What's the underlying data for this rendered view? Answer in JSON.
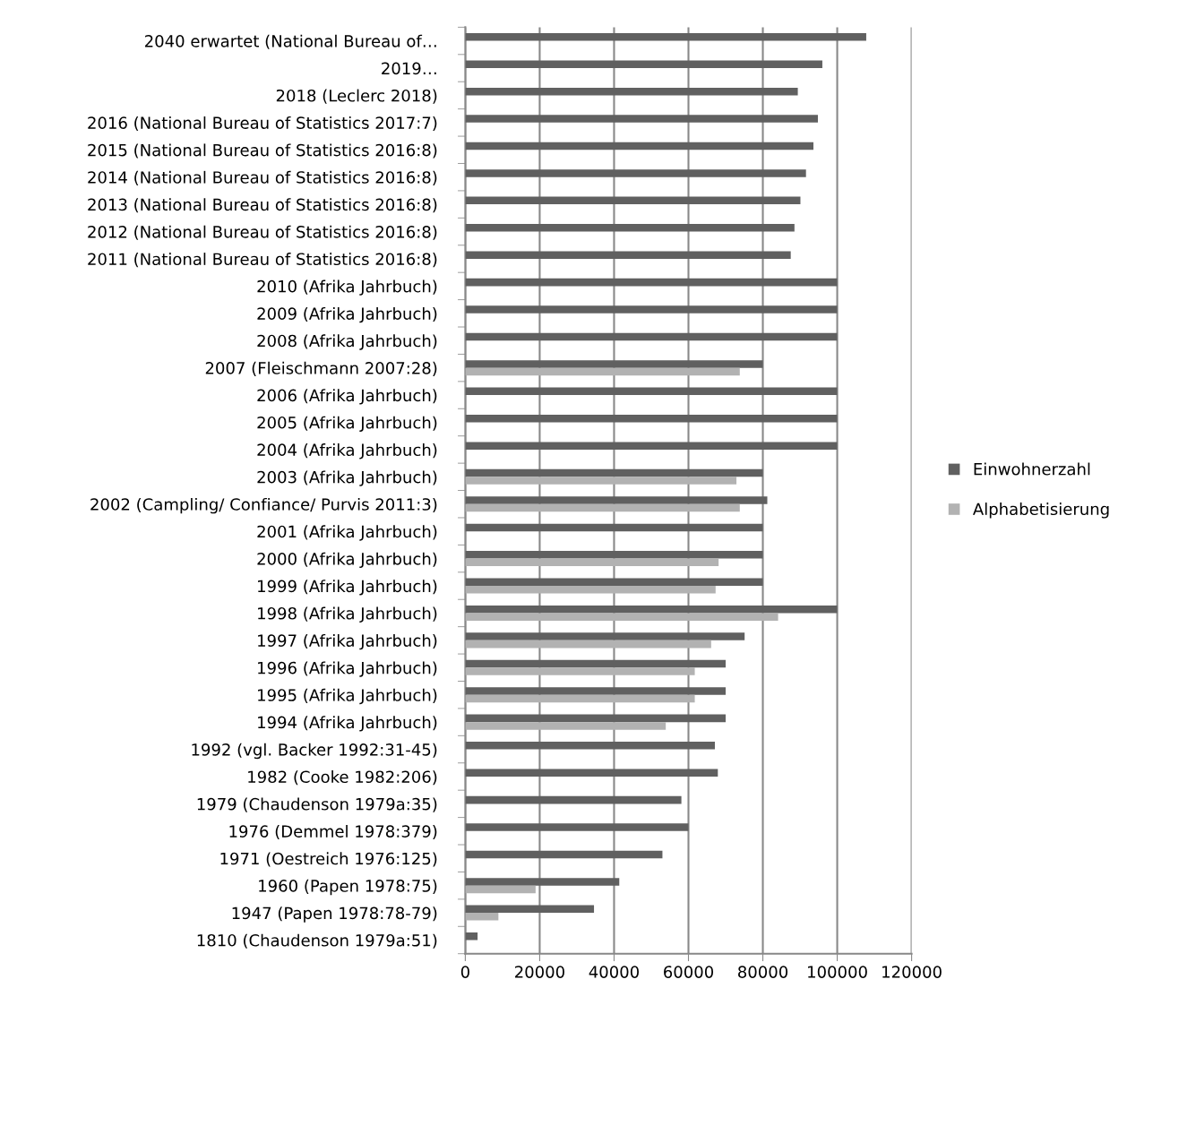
{
  "chart_data": {
    "type": "bar",
    "orientation": "horizontal",
    "categories": [
      "2040 erwartet (National Bureau of…",
      "2019…",
      "2018 (Leclerc 2018)",
      "2016 (National Bureau of Statistics 2017:7)",
      "2015 (National Bureau of Statistics 2016:8)",
      "2014 (National Bureau of Statistics 2016:8)",
      "2013 (National Bureau of Statistics 2016:8)",
      "2012 (National Bureau of Statistics 2016:8)",
      "2011 (National Bureau of Statistics 2016:8)",
      "2010 (Afrika Jahrbuch)",
      "2009 (Afrika Jahrbuch)",
      "2008 (Afrika Jahrbuch)",
      "2007 (Fleischmann 2007:28)",
      "2006 (Afrika Jahrbuch)",
      "2005 (Afrika Jahrbuch)",
      "2004 (Afrika Jahrbuch)",
      "2003 (Afrika Jahrbuch)",
      "2002 (Campling/ Confiance/ Purvis 2011:3)",
      "2001 (Afrika Jahrbuch)",
      "2000 (Afrika Jahrbuch)",
      "1999 (Afrika Jahrbuch)",
      "1998 (Afrika Jahrbuch)",
      "1997 (Afrika Jahrbuch)",
      "1996 (Afrika Jahrbuch)",
      "1995 (Afrika Jahrbuch)",
      "1994 (Afrika Jahrbuch)",
      "1992 (vgl. Backer 1992:31-45)",
      "1982 (Cooke 1982:206)",
      "1979 (Chaudenson 1979a:35)",
      "1976 (Demmel 1978:379)",
      "1971 (Oestreich 1976:125)",
      "1960 (Papen 1978:75)",
      "1947 (Papen 1978:78-79)",
      "1810 (Chaudenson 1979a:51)"
    ],
    "series": [
      {
        "name": "Einwohnerzahl",
        "color": "#606060",
        "values": [
          107800,
          96000,
          89400,
          94800,
          93600,
          91600,
          90100,
          88500,
          87500,
          100000,
          100000,
          100000,
          80000,
          100000,
          100000,
          100000,
          80000,
          81200,
          80000,
          80000,
          80000,
          100000,
          75100,
          70000,
          70000,
          70000,
          67100,
          67900,
          58100,
          60000,
          53000,
          41400,
          34600,
          3300
        ]
      },
      {
        "name": "Alphabetisierung",
        "color": "#b2b2b2",
        "values": [
          null,
          null,
          null,
          null,
          null,
          null,
          null,
          null,
          null,
          null,
          null,
          null,
          73800,
          null,
          null,
          null,
          72900,
          73800,
          null,
          68100,
          67300,
          84100,
          66100,
          61700,
          61700,
          53900,
          null,
          null,
          null,
          null,
          null,
          18900,
          8900,
          null
        ]
      }
    ],
    "xlim": [
      0,
      120000
    ],
    "xticks": [
      0,
      20000,
      40000,
      60000,
      80000,
      100000,
      120000
    ],
    "grid": "x",
    "legend": "right"
  }
}
